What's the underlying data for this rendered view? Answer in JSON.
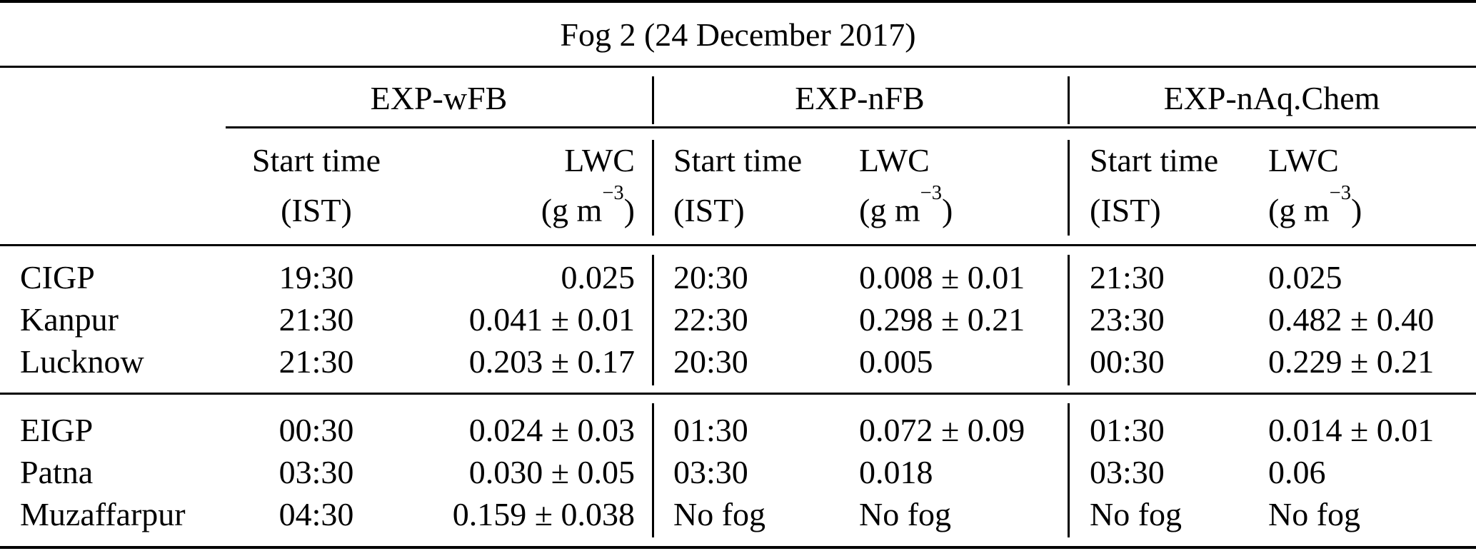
{
  "title": "Fog 2 (24 December 2017)",
  "experiments": [
    {
      "name": "EXP-wFB"
    },
    {
      "name": "EXP-nFB"
    },
    {
      "name": "EXP-nAq.Chem"
    }
  ],
  "headers": {
    "start_time": "Start time",
    "start_time_unit": "(IST)",
    "lwc": "LWC",
    "lwc_unit_prefix": "(g m",
    "lwc_unit_sup": "−3",
    "lwc_unit_suffix": ")"
  },
  "groups": [
    {
      "rows": [
        {
          "station": "CIGP",
          "wfb_start": "19:30",
          "wfb_lwc": "0.025",
          "nfb_start": "20:30",
          "nfb_lwc": "0.008 ± 0.01",
          "naq_start": "21:30",
          "naq_lwc": "0.025"
        },
        {
          "station": "Kanpur",
          "wfb_start": "21:30",
          "wfb_lwc": "0.041 ± 0.01",
          "nfb_start": "22:30",
          "nfb_lwc": "0.298 ± 0.21",
          "naq_start": "23:30",
          "naq_lwc": "0.482 ± 0.40"
        },
        {
          "station": "Lucknow",
          "wfb_start": "21:30",
          "wfb_lwc": "0.203 ± 0.17",
          "nfb_start": "20:30",
          "nfb_lwc": "0.005",
          "naq_start": "00:30",
          "naq_lwc": "0.229 ± 0.21"
        }
      ]
    },
    {
      "rows": [
        {
          "station": "EIGP",
          "wfb_start": "00:30",
          "wfb_lwc": "0.024 ± 0.03",
          "nfb_start": "01:30",
          "nfb_lwc": "0.072 ± 0.09",
          "naq_start": "01:30",
          "naq_lwc": "0.014 ± 0.01"
        },
        {
          "station": "Patna",
          "wfb_start": "03:30",
          "wfb_lwc": "0.030 ± 0.05",
          "nfb_start": "03:30",
          "nfb_lwc": "0.018",
          "naq_start": "03:30",
          "naq_lwc": "0.06"
        },
        {
          "station": "Muzaffarpur",
          "wfb_start": "04:30",
          "wfb_lwc": "0.159 ± 0.038",
          "nfb_start": "No fog",
          "nfb_lwc": "No fog",
          "naq_start": "No fog",
          "naq_lwc": "No fog"
        }
      ]
    }
  ],
  "colors": {
    "text": "#000000",
    "background": "#ffffff",
    "rule": "#000000"
  },
  "chart_data": {
    "type": "table",
    "title": "Fog 2 (24 December 2017)",
    "column_groups": [
      "EXP-wFB",
      "EXP-nFB",
      "EXP-nAq.Chem"
    ],
    "columns": [
      "Station",
      "EXP-wFB Start time (IST)",
      "EXP-wFB LWC (g m−3)",
      "EXP-nFB Start time (IST)",
      "EXP-nFB LWC (g m−3)",
      "EXP-nAq.Chem Start time (IST)",
      "EXP-nAq.Chem LWC (g m−3)"
    ],
    "rows": [
      [
        "CIGP",
        "19:30",
        "0.025",
        "20:30",
        "0.008 ± 0.01",
        "21:30",
        "0.025"
      ],
      [
        "Kanpur",
        "21:30",
        "0.041 ± 0.01",
        "22:30",
        "0.298 ± 0.21",
        "23:30",
        "0.482 ± 0.40"
      ],
      [
        "Lucknow",
        "21:30",
        "0.203 ± 0.17",
        "20:30",
        "0.005",
        "00:30",
        "0.229 ± 0.21"
      ],
      [
        "EIGP",
        "00:30",
        "0.024 ± 0.03",
        "01:30",
        "0.072 ± 0.09",
        "01:30",
        "0.014 ± 0.01"
      ],
      [
        "Patna",
        "03:30",
        "0.030 ± 0.05",
        "03:30",
        "0.018",
        "03:30",
        "0.06"
      ],
      [
        "Muzaffarpur",
        "04:30",
        "0.159 ± 0.038",
        "No fog",
        "No fog",
        "No fog",
        "No fog"
      ]
    ]
  }
}
